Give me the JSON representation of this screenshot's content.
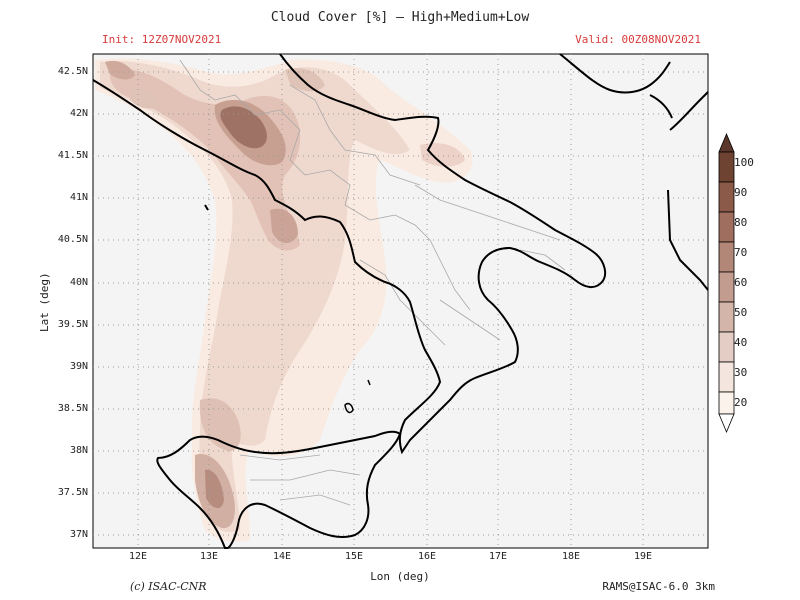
{
  "title": "Cloud Cover [%] — High+Medium+Low",
  "init": "Init: 12Z07NOV2021",
  "valid": "Valid: 00Z08NOV2021",
  "xlabel": "Lon (deg)",
  "ylabel": "Lat (deg)",
  "credit": "(c) ISAC-CNR",
  "model": "RAMS@ISAC-6.0 3km",
  "lat_ticks": [
    "42.5N",
    "42N",
    "41.5N",
    "41N",
    "40.5N",
    "40N",
    "39.5N",
    "39N",
    "38.5N",
    "38N",
    "37.5N",
    "37N"
  ],
  "lon_ticks": [
    "12E",
    "13E",
    "14E",
    "15E",
    "16E",
    "17E",
    "18E",
    "19E"
  ],
  "colorbar": {
    "levels": [
      "100",
      "90",
      "80",
      "70",
      "60",
      "50",
      "40",
      "30",
      "20"
    ],
    "colors": [
      "#6e4332",
      "#8c5a48",
      "#a06e5e",
      "#b38778",
      "#c39c90",
      "#d4b5aa",
      "#e4cdc4",
      "#f4e6de",
      "#fcf2ec"
    ]
  }
}
